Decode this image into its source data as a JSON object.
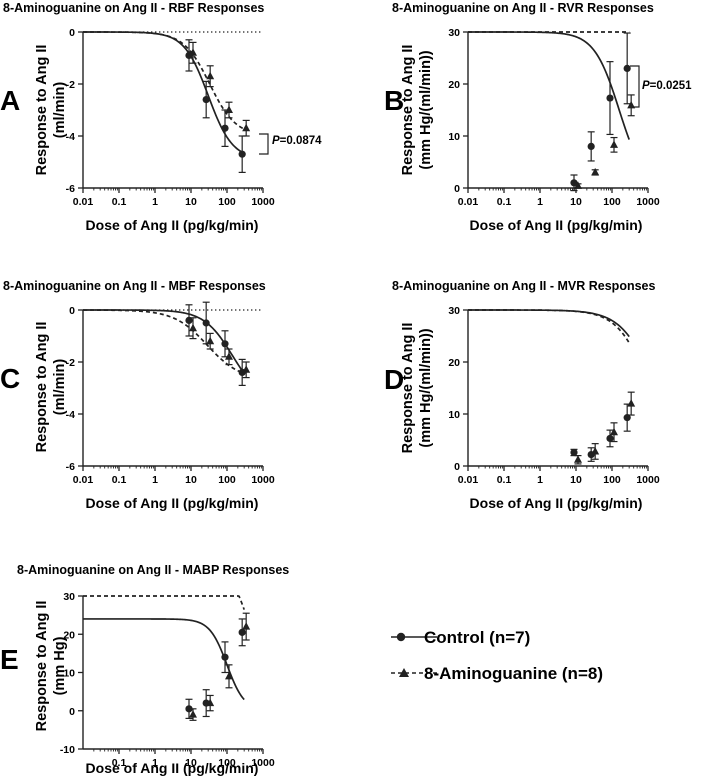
{
  "figure": {
    "legend": {
      "control": "Control (n=7)",
      "amg": "8-Aminoguanine (n=8)"
    }
  },
  "colors": {
    "ink": "#222222",
    "axis": "#222222"
  },
  "chart_data": [
    {
      "id": "A",
      "letter": "A",
      "type": "line",
      "title": "8-Aminoguanine on Ang II - RBF Responses",
      "xlabel": "Dose of Ang II (pg/kg/min)",
      "ylabel": [
        "Response to Ang II",
        "(ml/min)"
      ],
      "xscale": "log",
      "xlim": [
        0.01,
        1000
      ],
      "xticks": [
        0.01,
        0.1,
        1,
        10,
        100,
        1000
      ],
      "xticklabels": [
        "0.01",
        "0.1",
        "1",
        "10",
        "100",
        "1000"
      ],
      "ylim": [
        -6,
        0
      ],
      "yticks": [
        -6,
        -4,
        -2,
        0
      ],
      "zero_line": true,
      "pvalue": {
        "label": "P",
        "text": "=0.0874"
      },
      "series": [
        {
          "name": "Control (n=7)",
          "marker": "circle",
          "dash": false,
          "x": [
            10,
            30,
            100,
            300
          ],
          "y": [
            -0.9,
            -2.6,
            -3.7,
            -4.7
          ],
          "err": [
            0.6,
            0.7,
            0.7,
            0.7
          ],
          "curve": {
            "bottom": -4.9,
            "top": 0,
            "logEC50": 1.48,
            "hill": 1.3
          }
        },
        {
          "name": "8-Aminoguanine (n=8)",
          "marker": "triangle",
          "dash": true,
          "x": [
            10,
            30,
            100,
            300
          ],
          "y": [
            -0.8,
            -1.7,
            -3.0,
            -3.7
          ],
          "err": [
            0.4,
            0.4,
            0.3,
            0.3
          ],
          "curve": {
            "bottom": -4.0,
            "top": 0,
            "logEC50": 1.52,
            "hill": 1.2
          }
        }
      ]
    },
    {
      "id": "B",
      "letter": "B",
      "type": "line",
      "title": "8-Aminoguanine on Ang II - RVR Responses",
      "xlabel": "Dose of Ang II (pg/kg/min)",
      "ylabel": [
        "Response to Ang II",
        "(mm Hg/(ml/min))"
      ],
      "xscale": "log",
      "xlim": [
        0.01,
        1000
      ],
      "xticks": [
        0.01,
        0.1,
        1,
        10,
        100,
        1000
      ],
      "xticklabels": [
        "0.01",
        "0.1",
        "1",
        "10",
        "100",
        "1000"
      ],
      "ylim": [
        0,
        30
      ],
      "yticks": [
        0,
        10,
        20,
        30
      ],
      "zero_line": false,
      "pvalue": {
        "label": "P",
        "text": "=0.0251"
      },
      "series": [
        {
          "name": "Control (n=7)",
          "marker": "circle",
          "dash": false,
          "x": [
            10,
            30,
            100,
            300
          ],
          "y": [
            1.0,
            8.0,
            17.3,
            23.0
          ],
          "err": [
            1.5,
            2.8,
            7.0,
            6.8
          ],
          "curve": {
            "bottom": 0,
            "top": 30,
            "logEC50": 2.2,
            "hill": 1.25
          }
        },
        {
          "name": "8-Aminoguanine (n=8)",
          "marker": "triangle",
          "dash": true,
          "x": [
            10,
            30,
            100,
            300
          ],
          "y": [
            0.4,
            3.0,
            8.3,
            15.9
          ],
          "err": [
            0.4,
            0.5,
            1.4,
            2.0
          ],
          "curve": {
            "bottom": 0,
            "top": 40,
            "logEC50": 2.9,
            "hill": 1.2
          }
        }
      ]
    },
    {
      "id": "C",
      "letter": "C",
      "type": "line",
      "title": "8-Aminoguanine on Ang II - MBF Responses",
      "xlabel": "Dose of Ang II (pg/kg/min)",
      "ylabel": [
        "Response to Ang II",
        "(ml/min)"
      ],
      "xscale": "log",
      "xlim": [
        0.01,
        1000
      ],
      "xticks": [
        0.01,
        0.1,
        1,
        10,
        100,
        1000
      ],
      "xticklabels": [
        "0.01",
        "0.1",
        "1",
        "10",
        "100",
        "1000"
      ],
      "ylim": [
        -6,
        0
      ],
      "yticks": [
        -6,
        -4,
        -2,
        0
      ],
      "zero_line": true,
      "pvalue": null,
      "series": [
        {
          "name": "Control (n=7)",
          "marker": "circle",
          "dash": false,
          "x": [
            10,
            30,
            100,
            300
          ],
          "y": [
            -0.4,
            -0.5,
            -1.3,
            -2.4
          ],
          "err": [
            0.6,
            0.8,
            0.5,
            0.5
          ],
          "curve": {
            "bottom": -3.5,
            "top": 0,
            "logEC50": 2.15,
            "hill": 1.1
          }
        },
        {
          "name": "8-Aminoguanine (n=8)",
          "marker": "triangle",
          "dash": true,
          "x": [
            10,
            30,
            100,
            300
          ],
          "y": [
            -0.7,
            -1.2,
            -1.8,
            -2.3
          ],
          "err": [
            0.4,
            0.3,
            0.3,
            0.3
          ],
          "curve": {
            "bottom": -2.7,
            "top": 0,
            "logEC50": 1.45,
            "hill": 0.95
          }
        }
      ]
    },
    {
      "id": "D",
      "letter": "D",
      "type": "line",
      "title": "8-Aminoguanine on Ang II - MVR Responses",
      "xlabel": "Dose of Ang II (pg/kg/min)",
      "ylabel": [
        "Response to Ang II",
        "(mm Hg/(ml/min))"
      ],
      "xscale": "log",
      "xlim": [
        0.01,
        1000
      ],
      "xticks": [
        0.01,
        0.1,
        1,
        10,
        100,
        1000
      ],
      "xticklabels": [
        "0.01",
        "0.1",
        "1",
        "10",
        "100",
        "1000"
      ],
      "ylim": [
        0,
        30
      ],
      "yticks": [
        0,
        10,
        20,
        30
      ],
      "zero_line": false,
      "pvalue": null,
      "series": [
        {
          "name": "Control (n=7)",
          "marker": "circle",
          "dash": false,
          "x": [
            10,
            30,
            100,
            300
          ],
          "y": [
            2.6,
            2.2,
            5.3,
            9.3
          ],
          "err": [
            0.6,
            1.3,
            1.6,
            2.6
          ],
          "curve": {
            "bottom": 0,
            "top": 30,
            "logEC50": 3.2,
            "hill": 0.95
          }
        },
        {
          "name": "8-Aminoguanine (n=8)",
          "marker": "triangle",
          "dash": true,
          "x": [
            10,
            30,
            100,
            300
          ],
          "y": [
            1.2,
            2.8,
            6.5,
            12.0
          ],
          "err": [
            0.8,
            1.5,
            1.8,
            2.2
          ],
          "curve": {
            "bottom": 0,
            "top": 30,
            "logEC50": 3.05,
            "hill": 1.0
          }
        }
      ]
    },
    {
      "id": "E",
      "letter": "E",
      "type": "line",
      "title": "8-Aminoguanine on Ang II - MABP Responses",
      "xlabel": "Dose of Ang II (pg/kg/min)",
      "ylabel": [
        "Response to Ang II",
        "(mm Hg)"
      ],
      "xscale": "log",
      "xlim": [
        0.01,
        1000
      ],
      "xticks": [
        0.1,
        1,
        10,
        100,
        1000
      ],
      "xticklabels": [
        "0.1",
        "1",
        "10",
        "100",
        "1000"
      ],
      "ylim": [
        -10,
        30
      ],
      "yticks": [
        -10,
        0,
        10,
        20,
        30
      ],
      "zero_line": false,
      "pvalue": null,
      "series": [
        {
          "name": "Control (n=7)",
          "marker": "circle",
          "dash": false,
          "x": [
            10,
            30,
            100,
            300
          ],
          "y": [
            0.5,
            2.0,
            14.0,
            20.5
          ],
          "err": [
            2.5,
            3.5,
            4.0,
            3.5
          ],
          "curve": {
            "bottom": 0,
            "top": 24,
            "logEC50": 2.0,
            "hill": 1.8
          }
        },
        {
          "name": "8-Aminoguanine (n=8)",
          "marker": "triangle",
          "dash": true,
          "x": [
            10,
            30,
            100,
            300
          ],
          "y": [
            -1.0,
            2.0,
            9.0,
            22.0
          ],
          "err": [
            1.5,
            2.0,
            3.0,
            3.5
          ],
          "curve": {
            "bottom": 0,
            "top": 40,
            "logEC50": 2.7,
            "hill": 1.3
          }
        }
      ]
    }
  ]
}
